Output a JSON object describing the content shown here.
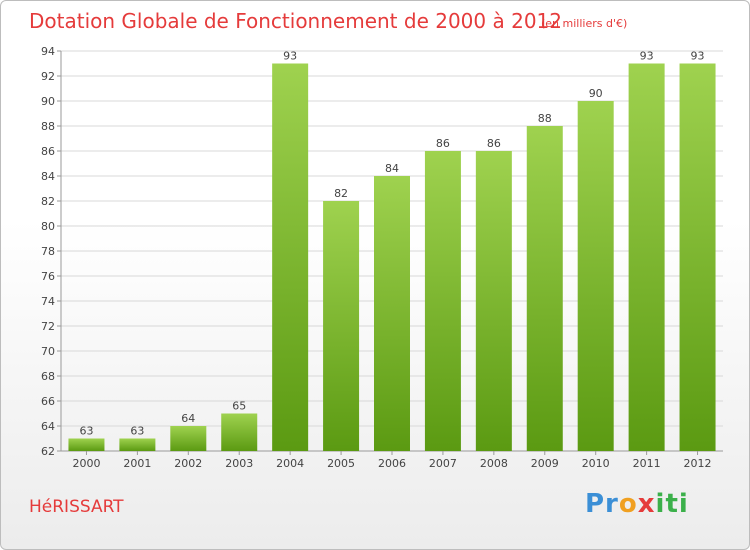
{
  "header": {
    "title": "Dotation Globale de Fonctionnement de 2000 à 2012",
    "subtitle": "(en milliers d'€)"
  },
  "footer": {
    "commune": "HéRISSART",
    "logo_parts": [
      "Pr",
      "o",
      "x",
      "iti"
    ]
  },
  "colors": {
    "bar_light": "#9fd24f",
    "bar_dark": "#5b9a12",
    "title": "#e53b3b",
    "grid": "#d8d8d8"
  },
  "chart_data": {
    "type": "bar",
    "title": "Dotation Globale de Fonctionnement de 2000 à 2012",
    "subtitle": "(en milliers d'€)",
    "xlabel": "",
    "ylabel": "",
    "categories": [
      "2000",
      "2001",
      "2002",
      "2003",
      "2004",
      "2005",
      "2006",
      "2007",
      "2008",
      "2009",
      "2010",
      "2011",
      "2012"
    ],
    "values": [
      63,
      63,
      64,
      65,
      93,
      82,
      84,
      86,
      86,
      88,
      90,
      93,
      93
    ],
    "ylim": [
      62,
      94
    ],
    "yticks": [
      62,
      64,
      66,
      68,
      70,
      72,
      74,
      76,
      78,
      80,
      82,
      84,
      86,
      88,
      90,
      92,
      94
    ],
    "grid": true,
    "data_labels": true
  }
}
